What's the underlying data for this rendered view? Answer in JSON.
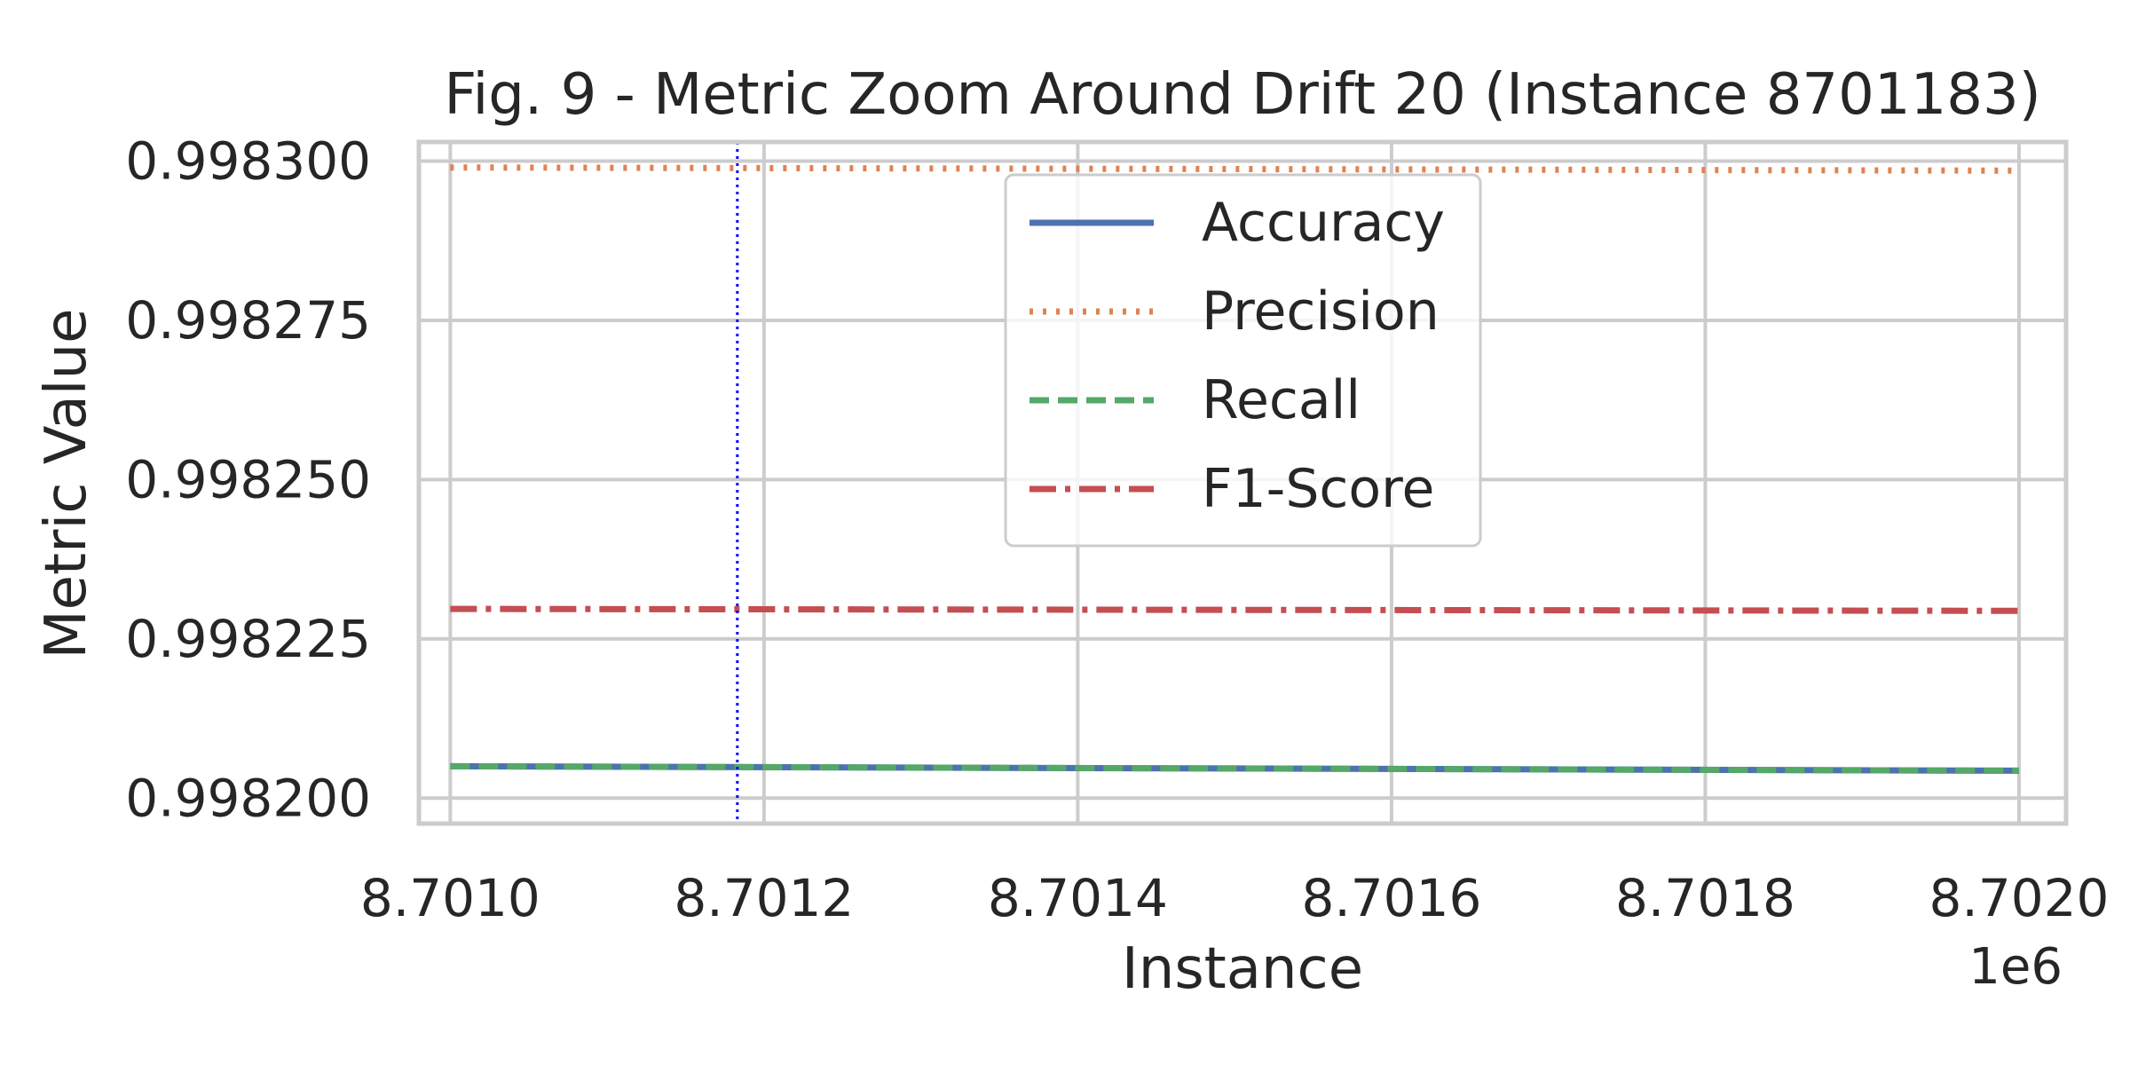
{
  "chart_data": {
    "type": "line",
    "title": "Fig. 9 - Metric Zoom Around Drift 20 (Instance 8701183)",
    "xlabel": "Instance",
    "ylabel": "Metric Value",
    "x_offset_label": "1e6",
    "xlim": [
      8700980,
      8702030
    ],
    "ylim": [
      0.998196,
      0.998303
    ],
    "x_ticks": [
      8701000,
      8701200,
      8701400,
      8701600,
      8701800,
      8702000
    ],
    "x_tick_labels": [
      "8.7010",
      "8.7012",
      "8.7014",
      "8.7016",
      "8.7018",
      "8.7020"
    ],
    "y_ticks": [
      0.9982,
      0.998225,
      0.99825,
      0.998275,
      0.9983
    ],
    "y_tick_labels": [
      "0.998200",
      "0.998225",
      "0.998250",
      "0.998275",
      "0.998300"
    ],
    "grid": true,
    "legend_position": "upper center",
    "drift_line": {
      "x": 8701183,
      "color": "#0000ff",
      "style": "dotted"
    },
    "series": [
      {
        "name": "Accuracy",
        "color": "#4c72b0",
        "style": "solid",
        "x": [
          8701000,
          8702000
        ],
        "values": [
          0.998205,
          0.9982043
        ]
      },
      {
        "name": "Precision",
        "color": "#dd8452",
        "style": "dotted",
        "x": [
          8701000,
          8702000
        ],
        "values": [
          0.998299,
          0.9982985
        ]
      },
      {
        "name": "Recall",
        "color": "#55a868",
        "style": "dashed",
        "x": [
          8701000,
          8702000
        ],
        "values": [
          0.998205,
          0.9982043
        ]
      },
      {
        "name": "F1-Score",
        "color": "#c44e52",
        "style": "dashdot",
        "x": [
          8701000,
          8702000
        ],
        "values": [
          0.9982297,
          0.9982294
        ]
      }
    ]
  }
}
